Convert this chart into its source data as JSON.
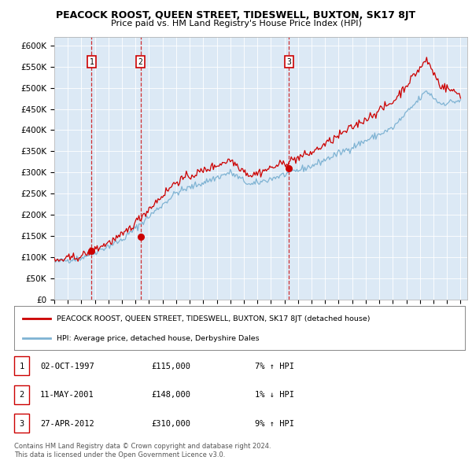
{
  "title": "PEACOCK ROOST, QUEEN STREET, TIDESWELL, BUXTON, SK17 8JT",
  "subtitle": "Price paid vs. HM Land Registry's House Price Index (HPI)",
  "ylabel_ticks": [
    "£0",
    "£50K",
    "£100K",
    "£150K",
    "£200K",
    "£250K",
    "£300K",
    "£350K",
    "£400K",
    "£450K",
    "£500K",
    "£550K",
    "£600K"
  ],
  "ytick_values": [
    0,
    50000,
    100000,
    150000,
    200000,
    250000,
    300000,
    350000,
    400000,
    450000,
    500000,
    550000,
    600000
  ],
  "ylim": [
    0,
    620000
  ],
  "plot_bg_color": "#dce9f5",
  "line_color_hpi": "#7fb3d3",
  "line_color_price": "#cc0000",
  "trans_dates": [
    1997.75,
    2001.37,
    2012.33
  ],
  "trans_prices": [
    115000,
    148000,
    310000
  ],
  "trans_labels": [
    "1",
    "2",
    "3"
  ],
  "legend_line1": "PEACOCK ROOST, QUEEN STREET, TIDESWELL, BUXTON, SK17 8JT (detached house)",
  "legend_line2": "HPI: Average price, detached house, Derbyshire Dales",
  "footer1": "Contains HM Land Registry data © Crown copyright and database right 2024.",
  "footer2": "This data is licensed under the Open Government Licence v3.0.",
  "table_rows": [
    [
      "1",
      "02-OCT-1997",
      "£115,000",
      "7% ↑ HPI"
    ],
    [
      "2",
      "11-MAY-2001",
      "£148,000",
      "1% ↓ HPI"
    ],
    [
      "3",
      "27-APR-2012",
      "£310,000",
      "9% ↑ HPI"
    ]
  ]
}
